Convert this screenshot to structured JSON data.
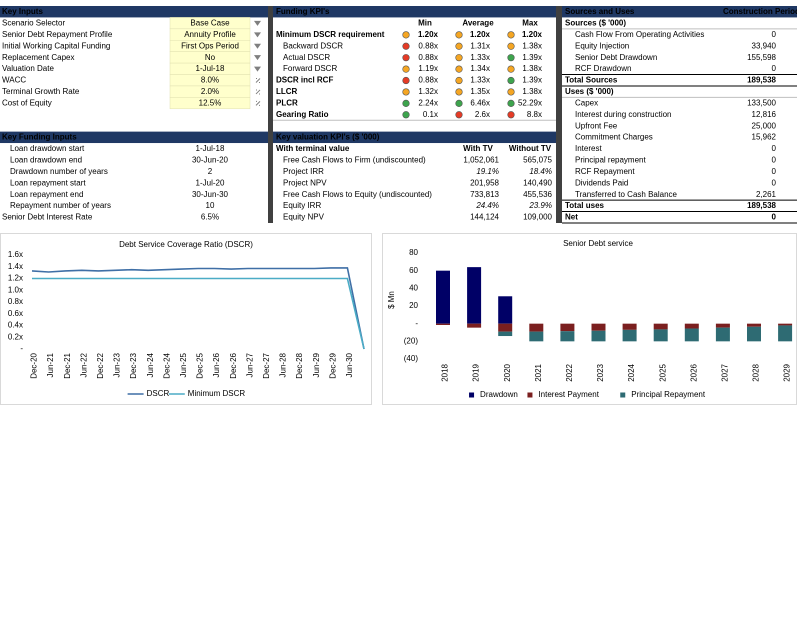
{
  "key_inputs": {
    "title": "Key Inputs",
    "rows": [
      {
        "label": "Scenario Selector",
        "value": "Base Case"
      },
      {
        "label": "Senior Debt Repayment Profile",
        "value": "Annuity Profile"
      },
      {
        "label": "Initial Working Capital Funding",
        "value": "First Ops Period"
      },
      {
        "label": "Replacement Capex",
        "value": "No"
      },
      {
        "label": "Valuation Date",
        "value": "1-Jul-18"
      },
      {
        "label": "WACC",
        "value": "8.0%"
      },
      {
        "label": "Terminal Growth Rate",
        "value": "2.0%"
      },
      {
        "label": "Cost of Equity",
        "value": "12.5%"
      }
    ]
  },
  "key_funding_inputs": {
    "title": "Key Funding Inputs",
    "rows": [
      {
        "label": "Loan drawdown start",
        "value": "1-Jul-18"
      },
      {
        "label": "Loan drawdown end",
        "value": "30-Jun-20"
      },
      {
        "label": "Drawdown number of years",
        "value": "2"
      },
      {
        "label": "Loan repayment start",
        "value": "1-Jul-20"
      },
      {
        "label": "Loan repayment end",
        "value": "30-Jun-30"
      },
      {
        "label": "Repayment number of years",
        "value": "10"
      },
      {
        "label": "Senior Debt Interest Rate",
        "value": "6.5%"
      }
    ]
  },
  "funding_kpis": {
    "title": "Funding KPI's",
    "columns": [
      "Min",
      "Average",
      "Max"
    ],
    "rows": [
      {
        "label": "Minimum DSCR requirement",
        "cells": [
          {
            "status": "amber",
            "value": "1.20x"
          },
          {
            "status": "amber",
            "value": "1.20x"
          },
          {
            "status": "amber",
            "value": "1.20x"
          }
        ]
      },
      {
        "label": "Backward DSCR",
        "cells": [
          {
            "status": "red",
            "value": "0.88x"
          },
          {
            "status": "amber",
            "value": "1.31x"
          },
          {
            "status": "amber",
            "value": "1.38x"
          }
        ]
      },
      {
        "label": "Actual DSCR",
        "cells": [
          {
            "status": "red",
            "value": "0.88x"
          },
          {
            "status": "amber",
            "value": "1.33x"
          },
          {
            "status": "green",
            "value": "1.39x"
          }
        ]
      },
      {
        "label": "Forward DSCR",
        "cells": [
          {
            "status": "amber",
            "value": "1.19x"
          },
          {
            "status": "amber",
            "value": "1.34x"
          },
          {
            "status": "amber",
            "value": "1.38x"
          }
        ]
      },
      {
        "label": "DSCR incl RCF",
        "cells": [
          {
            "status": "red",
            "value": "0.88x"
          },
          {
            "status": "amber",
            "value": "1.33x"
          },
          {
            "status": "green",
            "value": "1.39x"
          }
        ]
      },
      {
        "label": "LLCR",
        "cells": [
          {
            "status": "amber",
            "value": "1.32x"
          },
          {
            "status": "amber",
            "value": "1.35x"
          },
          {
            "status": "amber",
            "value": "1.38x"
          }
        ]
      },
      {
        "label": "PLCR",
        "cells": [
          {
            "status": "green",
            "value": "2.24x"
          },
          {
            "status": "green",
            "value": "6.46x"
          },
          {
            "status": "green",
            "value": "52.29x"
          }
        ]
      },
      {
        "label": "Gearing Ratio",
        "cells": [
          {
            "status": "green",
            "value": "0.1x"
          },
          {
            "status": "red",
            "value": "2.6x"
          },
          {
            "status": "red",
            "value": "8.8x"
          }
        ]
      }
    ]
  },
  "valuation_kpis": {
    "title": "Key valuation KPI's ($ '000)",
    "columns": [
      "With terminal value",
      "With TV",
      "Without TV"
    ],
    "rows": [
      {
        "label": "Free Cash Flows to Firm (undiscounted)",
        "values": [
          "1,052,061",
          "565,075"
        ]
      },
      {
        "label": "Project IRR",
        "values": [
          "19.1%",
          "18.4%"
        ]
      },
      {
        "label": "Project NPV",
        "values": [
          "201,958",
          "140,490"
        ]
      },
      {
        "label": "Free Cash Flows to Equity (undiscounted)",
        "values": [
          "733,813",
          "455,536"
        ]
      },
      {
        "label": "Equity IRR",
        "values": [
          "24.4%",
          "23.9%"
        ]
      },
      {
        "label": "Equity NPV",
        "values": [
          "144,124",
          "109,000"
        ]
      }
    ]
  },
  "sources_uses": {
    "title": "Sources and Uses",
    "column": "Construction Period",
    "sources": {
      "title": "Sources ($ '000)",
      "rows": [
        {
          "label": "Cash Flow From Operating Activities",
          "value": "0"
        },
        {
          "label": "Equity Injection",
          "value": "33,940"
        },
        {
          "label": "Senior Debt Drawdown",
          "value": "155,598"
        },
        {
          "label": "RCF Drawdown",
          "value": "0"
        }
      ],
      "total": {
        "label": "Total Sources",
        "value": "189,538"
      }
    },
    "uses": {
      "title": "Uses ($ '000)",
      "rows": [
        {
          "label": "Capex",
          "value": "133,500"
        },
        {
          "label": "Interest during construction",
          "value": "12,816"
        },
        {
          "label": "Upfront Fee",
          "value": "25,000"
        },
        {
          "label": "Commitment Charges",
          "value": "15,962"
        },
        {
          "label": "Interest",
          "value": "0"
        },
        {
          "label": "Principal repayment",
          "value": "0"
        },
        {
          "label": "RCF Repayment",
          "value": "0"
        },
        {
          "label": "Dividends Paid",
          "value": "0"
        },
        {
          "label": "Transferred to Cash Balance",
          "value": "2,261"
        }
      ],
      "total": {
        "label": "Total uses",
        "value": "189,538"
      }
    },
    "net": {
      "label": "Net",
      "value": "0"
    }
  },
  "chart_data": [
    {
      "type": "line",
      "title": "Debt Service Coverage Ratio (DSCR)",
      "categories": [
        "Dec-20",
        "Jun-21",
        "Dec-21",
        "Jun-22",
        "Dec-22",
        "Jun-23",
        "Dec-23",
        "Jun-24",
        "Dec-24",
        "Jun-25",
        "Dec-25",
        "Jun-26",
        "Dec-26",
        "Jun-27",
        "Dec-27",
        "Jun-28",
        "Dec-28",
        "Jun-29",
        "Dec-29",
        "Jun-30",
        null
      ],
      "series": [
        {
          "name": "DSCR",
          "color": "#3f6fa6",
          "values": [
            1.33,
            1.31,
            1.33,
            1.34,
            1.33,
            1.34,
            1.35,
            1.34,
            1.35,
            1.36,
            1.37,
            1.37,
            1.36,
            1.37,
            1.37,
            1.37,
            1.37,
            1.37,
            1.38,
            1.38,
            0
          ]
        },
        {
          "name": "Minimum DSCR",
          "color": "#4bacc6",
          "values": [
            1.2,
            1.2,
            1.2,
            1.2,
            1.2,
            1.2,
            1.2,
            1.2,
            1.2,
            1.2,
            1.2,
            1.2,
            1.2,
            1.2,
            1.2,
            1.2,
            1.2,
            1.2,
            1.2,
            1.2,
            0
          ]
        }
      ],
      "ylim": [
        0,
        1.6
      ],
      "yticks": [
        {
          "value": 0,
          "label": "-"
        },
        {
          "value": 0.2,
          "label": "0.2x"
        },
        {
          "value": 0.4,
          "label": "0.4x"
        },
        {
          "value": 0.6,
          "label": "0.6x"
        },
        {
          "value": 0.8,
          "label": "0.8x"
        },
        {
          "value": 1.0,
          "label": "1.0x"
        },
        {
          "value": 1.2,
          "label": "1.2x"
        },
        {
          "value": 1.4,
          "label": "1.4x"
        },
        {
          "value": 1.6,
          "label": "1.6x"
        }
      ],
      "legend": "bottom"
    },
    {
      "type": "bar",
      "title": "Senior Debt service",
      "y_label": "$ Mn",
      "categories": [
        "2018",
        "2019",
        "2020",
        "2021",
        "2022",
        "2023",
        "2024",
        "2025",
        "2026",
        "2027",
        "2028",
        "2029"
      ],
      "series": [
        {
          "name": "Drawdown",
          "color": "#000066",
          "values": [
            60,
            64,
            31,
            0,
            0,
            0,
            0,
            0,
            0,
            0,
            0,
            0
          ]
        },
        {
          "name": "Interest Payment",
          "color": "#7b1f1f",
          "values": [
            -1.5,
            -4.5,
            -9,
            -9,
            -8.5,
            -8,
            -7,
            -6.5,
            -5.5,
            -4.5,
            -3.5,
            -2
          ]
        },
        {
          "name": "Principal Repayment",
          "color": "#2e6b73",
          "values": [
            0,
            0,
            -5,
            -11,
            -11.5,
            -12,
            -13,
            -13.5,
            -14.5,
            -15.5,
            -16.5,
            -18
          ]
        }
      ],
      "stacked": true,
      "ylim": [
        -40,
        80
      ],
      "yticks": [
        {
          "value": -40,
          "label": "(40)"
        },
        {
          "value": -20,
          "label": "(20)"
        },
        {
          "value": 0,
          "label": "-"
        },
        20,
        40,
        60,
        80
      ],
      "negative_tick_color": "#c00000",
      "legend": "bottom"
    }
  ]
}
